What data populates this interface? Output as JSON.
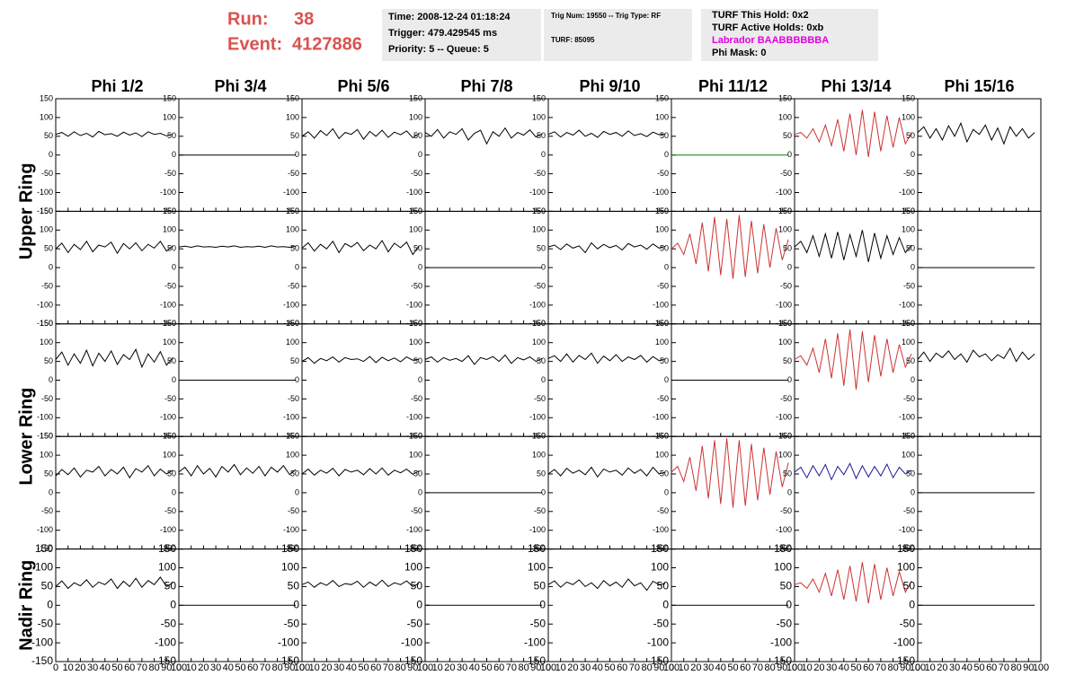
{
  "header": {
    "run_label": "Run:",
    "run": "38",
    "event_label": "Event:",
    "event": "4127886",
    "box1": [
      "Time: 2008-12-24 01:18:24",
      "Trigger: 479.429545 ms",
      "Priority: 5 -- Queue: 5"
    ],
    "box2": [
      "Trig Num: 19550 -- Trig Type: RF",
      "TURF: 85095"
    ],
    "box3": [
      "TURF This Hold: 0x2",
      "TURF Active Holds: 0xb",
      "Labrador BAABBBBBBA",
      "Phi Mask: 0"
    ]
  },
  "chart_data": {
    "type": "line",
    "columns": [
      "Phi 1/2",
      "Phi 3/4",
      "Phi 5/6",
      "Phi 7/8",
      "Phi 9/10",
      "Phi 11/12",
      "Phi 13/14",
      "Phi 15/16"
    ],
    "rows": [
      "Upper Ring",
      "Lower Ring",
      "Nadir Ring"
    ],
    "xlim": [
      0,
      100
    ],
    "ylim": [
      -150,
      150
    ],
    "xticks": [
      0,
      10,
      20,
      30,
      40,
      50,
      60,
      70,
      80,
      90,
      100
    ],
    "yticks": [
      -150,
      -100,
      -50,
      0,
      50,
      100,
      150
    ],
    "x": [
      0,
      5,
      10,
      15,
      20,
      25,
      30,
      35,
      40,
      45,
      50,
      55,
      60,
      65,
      70,
      75,
      80,
      85,
      90,
      95
    ],
    "panels": [
      [
        {
          "color": "#000000",
          "values": [
            55,
            60,
            50,
            62,
            52,
            58,
            48,
            63,
            54,
            57,
            50,
            61,
            53,
            59,
            49,
            62,
            55,
            58,
            51,
            56
          ]
        },
        {
          "color": "#000000",
          "values": [
            0,
            0,
            0,
            0,
            0,
            0,
            0,
            0,
            0,
            0,
            0,
            0,
            0,
            0,
            0,
            0,
            0,
            0,
            0,
            0
          ]
        },
        {
          "color": "#000000",
          "values": [
            50,
            62,
            45,
            65,
            52,
            70,
            44,
            60,
            55,
            68,
            42,
            63,
            50,
            66,
            47,
            61,
            54,
            64,
            46,
            58
          ]
        },
        {
          "color": "#000000",
          "values": [
            60,
            50,
            68,
            45,
            62,
            55,
            70,
            40,
            58,
            66,
            30,
            62,
            50,
            72,
            45,
            60,
            53,
            67,
            48,
            57
          ]
        },
        {
          "color": "#000000",
          "values": [
            55,
            62,
            48,
            60,
            53,
            66,
            50,
            58,
            47,
            63,
            55,
            60,
            50,
            64,
            52,
            57,
            49,
            61,
            54,
            56
          ]
        },
        {
          "color": "#008000",
          "values": [
            0,
            0,
            0,
            0,
            0,
            0,
            0,
            0,
            0,
            0,
            0,
            0,
            0,
            0,
            0,
            0,
            0,
            0,
            0,
            0
          ]
        },
        {
          "color": "#cc3333",
          "values": [
            55,
            60,
            45,
            70,
            35,
            80,
            25,
            95,
            10,
            110,
            0,
            120,
            -5,
            115,
            10,
            105,
            20,
            100,
            30,
            60
          ]
        },
        {
          "color": "#000000",
          "values": [
            60,
            75,
            45,
            70,
            40,
            78,
            50,
            85,
            35,
            68,
            55,
            80,
            40,
            72,
            30,
            75,
            50,
            70,
            45,
            60
          ]
        }
      ],
      [
        {
          "color": "#000000",
          "values": [
            50,
            65,
            40,
            62,
            48,
            70,
            42,
            60,
            55,
            68,
            38,
            64,
            50,
            66,
            45,
            62,
            52,
            70,
            44,
            58
          ]
        },
        {
          "color": "#000000",
          "values": [
            55,
            57,
            54,
            58,
            55,
            56,
            54,
            57,
            55,
            58,
            54,
            56,
            55,
            57,
            54,
            58,
            55,
            56,
            54,
            57
          ]
        },
        {
          "color": "#000000",
          "values": [
            52,
            66,
            44,
            62,
            50,
            70,
            40,
            64,
            55,
            67,
            45,
            60,
            50,
            72,
            42,
            65,
            53,
            68,
            35,
            58
          ]
        },
        {
          "color": "#000000",
          "values": [
            0,
            0,
            0,
            0,
            0,
            0,
            0,
            0,
            0,
            0,
            0,
            0,
            0,
            0,
            0,
            0,
            0,
            0,
            0,
            0
          ]
        },
        {
          "color": "#000000",
          "values": [
            55,
            60,
            48,
            63,
            52,
            58,
            40,
            66,
            50,
            62,
            53,
            59,
            47,
            64,
            55,
            60,
            49,
            63,
            52,
            57
          ]
        },
        {
          "color": "#cc3333",
          "values": [
            50,
            65,
            35,
            90,
            10,
            120,
            -10,
            135,
            -20,
            130,
            -30,
            140,
            -25,
            125,
            -15,
            115,
            0,
            105,
            20,
            75
          ]
        },
        {
          "color": "#000000",
          "values": [
            55,
            70,
            40,
            85,
            30,
            90,
            25,
            95,
            20,
            88,
            30,
            100,
            15,
            92,
            25,
            85,
            35,
            80,
            40,
            60
          ]
        },
        {
          "color": "#000000",
          "values": [
            0,
            0,
            0,
            0,
            0,
            0,
            0,
            0,
            0,
            0,
            0,
            0,
            0,
            0,
            0,
            0,
            0,
            0,
            0,
            0
          ]
        }
      ],
      [
        {
          "color": "#000000",
          "values": [
            55,
            75,
            40,
            70,
            45,
            80,
            38,
            72,
            50,
            78,
            42,
            68,
            55,
            82,
            35,
            70,
            48,
            76,
            40,
            60
          ]
        },
        {
          "color": "#000000",
          "values": [
            0,
            0,
            0,
            0,
            0,
            0,
            0,
            0,
            0,
            0,
            0,
            0,
            0,
            0,
            0,
            0,
            0,
            0,
            0,
            0
          ]
        },
        {
          "color": "#000000",
          "values": [
            50,
            60,
            45,
            58,
            52,
            62,
            48,
            60,
            55,
            57,
            50,
            63,
            47,
            61,
            52,
            59,
            49,
            62,
            53,
            56
          ]
        },
        {
          "color": "#000000",
          "values": [
            55,
            62,
            48,
            60,
            53,
            58,
            50,
            65,
            42,
            60,
            55,
            63,
            50,
            67,
            45,
            60,
            54,
            62,
            50,
            58
          ]
        },
        {
          "color": "#000000",
          "values": [
            58,
            65,
            50,
            70,
            48,
            66,
            55,
            72,
            45,
            64,
            52,
            68,
            50,
            62,
            55,
            66,
            48,
            63,
            52,
            57
          ]
        },
        {
          "color": "#000000",
          "values": [
            0,
            0,
            0,
            0,
            0,
            0,
            0,
            0,
            0,
            0,
            0,
            0,
            0,
            0,
            0,
            0,
            0,
            0,
            0,
            0
          ]
        },
        {
          "color": "#cc3333",
          "values": [
            55,
            65,
            40,
            85,
            20,
            110,
            5,
            125,
            -15,
            135,
            -25,
            130,
            -5,
            120,
            10,
            110,
            20,
            95,
            35,
            70
          ]
        },
        {
          "color": "#000000",
          "values": [
            55,
            75,
            50,
            72,
            60,
            78,
            55,
            70,
            48,
            80,
            62,
            70,
            52,
            68,
            58,
            85,
            50,
            75,
            55,
            70
          ]
        }
      ],
      [
        {
          "color": "#000000",
          "values": [
            45,
            62,
            48,
            66,
            42,
            60,
            55,
            70,
            45,
            62,
            50,
            68,
            40,
            64,
            55,
            72,
            45,
            63,
            50,
            60
          ]
        },
        {
          "color": "#000000",
          "values": [
            55,
            68,
            45,
            72,
            50,
            65,
            42,
            70,
            55,
            75,
            48,
            66,
            52,
            70,
            45,
            68,
            55,
            72,
            48,
            62
          ]
        },
        {
          "color": "#000000",
          "values": [
            50,
            63,
            47,
            60,
            52,
            65,
            45,
            62,
            55,
            60,
            48,
            64,
            50,
            66,
            47,
            60,
            53,
            63,
            49,
            58
          ]
        },
        {
          "color": "#000000",
          "values": [
            0,
            0,
            0,
            0,
            0,
            0,
            0,
            0,
            0,
            0,
            0,
            0,
            0,
            0,
            0,
            0,
            0,
            0,
            0,
            0
          ]
        },
        {
          "color": "#000000",
          "values": [
            50,
            62,
            45,
            65,
            52,
            60,
            48,
            68,
            42,
            63,
            55,
            60,
            47,
            66,
            52,
            62,
            45,
            68,
            50,
            55
          ]
        },
        {
          "color": "#cc3333",
          "values": [
            55,
            70,
            30,
            95,
            5,
            125,
            -15,
            140,
            -30,
            145,
            -40,
            140,
            -35,
            130,
            -20,
            120,
            -5,
            110,
            15,
            80
          ]
        },
        {
          "color": "#1a1a99",
          "values": [
            55,
            68,
            40,
            72,
            45,
            75,
            35,
            70,
            48,
            78,
            38,
            72,
            42,
            70,
            45,
            76,
            40,
            68,
            50,
            60
          ]
        },
        {
          "color": "#000000",
          "values": [
            0,
            0,
            0,
            0,
            0,
            0,
            0,
            0,
            0,
            0,
            0,
            0,
            0,
            0,
            0,
            0,
            0,
            0,
            0,
            0
          ]
        }
      ],
      [
        {
          "color": "#000000",
          "values": [
            50,
            65,
            45,
            60,
            52,
            68,
            48,
            62,
            55,
            70,
            45,
            64,
            50,
            72,
            48,
            66,
            55,
            75,
            50,
            60
          ]
        },
        {
          "color": "#000000",
          "values": [
            0,
            0,
            0,
            0,
            0,
            0,
            0,
            0,
            0,
            0,
            0,
            0,
            0,
            0,
            0,
            0,
            0,
            0,
            0,
            0
          ]
        },
        {
          "color": "#000000",
          "values": [
            55,
            62,
            48,
            60,
            53,
            66,
            50,
            58,
            55,
            64,
            48,
            62,
            52,
            67,
            50,
            60,
            55,
            65,
            50,
            58
          ]
        },
        {
          "color": "#000000",
          "values": [
            0,
            0,
            0,
            0,
            0,
            0,
            0,
            0,
            0,
            0,
            0,
            0,
            0,
            0,
            0,
            0,
            0,
            0,
            0,
            0
          ]
        },
        {
          "color": "#000000",
          "values": [
            55,
            65,
            48,
            62,
            55,
            68,
            50,
            60,
            45,
            66,
            52,
            62,
            48,
            70,
            52,
            60,
            40,
            64,
            55,
            58
          ]
        },
        {
          "color": "#000000",
          "values": [
            0,
            0,
            0,
            0,
            0,
            0,
            0,
            0,
            0,
            0,
            0,
            0,
            0,
            0,
            0,
            0,
            0,
            0,
            0,
            0
          ]
        },
        {
          "color": "#cc3333",
          "values": [
            55,
            60,
            45,
            70,
            35,
            85,
            25,
            95,
            15,
            105,
            10,
            115,
            5,
            110,
            15,
            100,
            25,
            90,
            35,
            65
          ]
        },
        {
          "color": "#000000",
          "values": [
            0,
            0,
            0,
            0,
            0,
            0,
            0,
            0,
            0,
            0,
            0,
            0,
            0,
            0,
            0,
            0,
            0,
            0,
            0,
            0
          ]
        }
      ]
    ]
  }
}
